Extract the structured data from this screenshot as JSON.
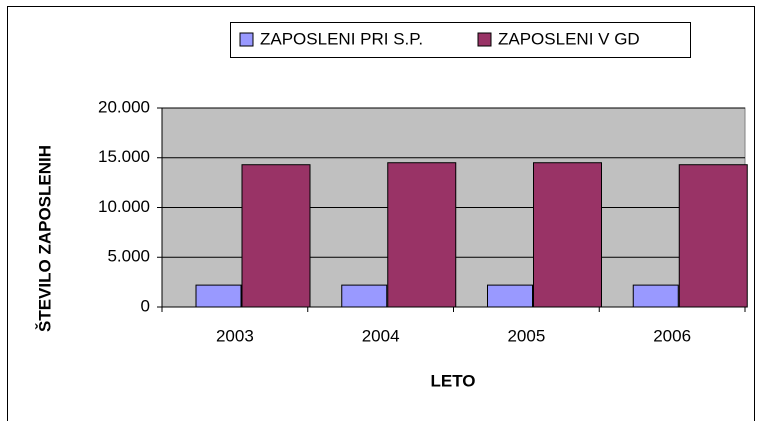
{
  "chart_data": {
    "type": "bar",
    "y_label": "ŠTEVILO ZAPOSLENIH",
    "x_label": "LETO",
    "categories": [
      "2003",
      "2004",
      "2005",
      "2006"
    ],
    "series": [
      {
        "name": "ZAPOSLENI PRI S.P.",
        "color": "#9999ff",
        "values": [
          2200,
          2200,
          2200,
          2200
        ]
      },
      {
        "name": "ZAPOSLENI V GD",
        "color": "#993366",
        "values": [
          14300,
          14500,
          14500,
          14300
        ]
      }
    ],
    "ylim": [
      0,
      20000
    ],
    "yticks": [
      0,
      {
        "value": 5000,
        "label": "5.000"
      },
      {
        "value": 10000,
        "label": "10.000"
      },
      {
        "value": 15000,
        "label": "15.000"
      },
      {
        "value": 20000,
        "label": "20.000"
      }
    ],
    "grid": true,
    "plot_background": "#c0c0c0",
    "legend": "top"
  }
}
